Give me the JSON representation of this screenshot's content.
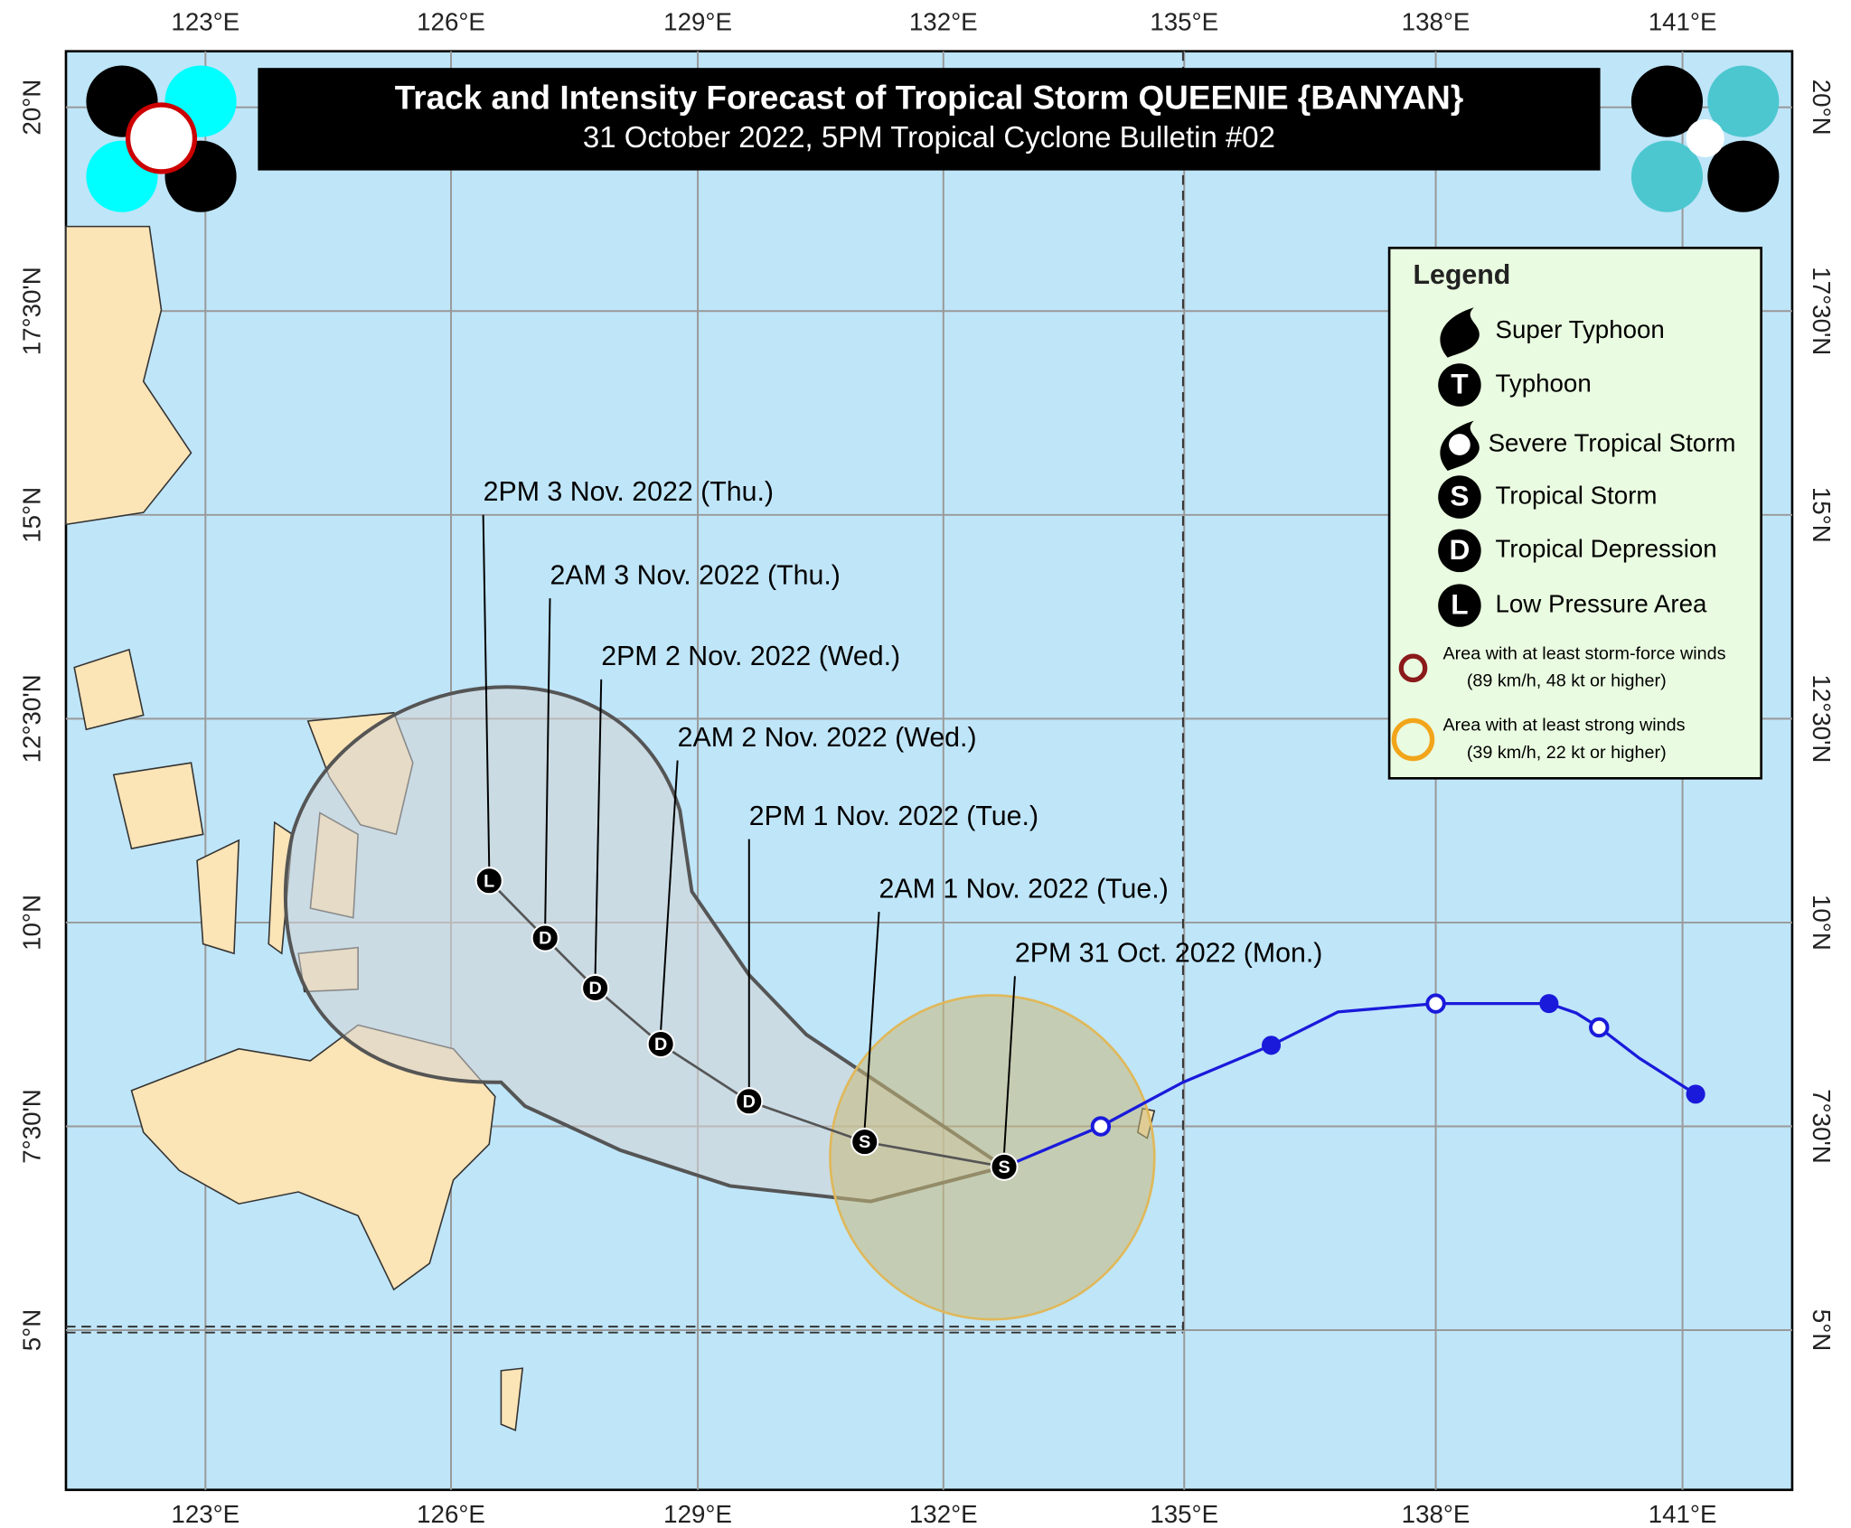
{
  "header": {
    "title": "Track and Intensity Forecast of Tropical Storm QUEENIE {BANYAN}",
    "subtitle": "31 October 2022, 5PM Tropical Cyclone Bulletin #02"
  },
  "axes": {
    "longitudes": [
      "123°E",
      "126°E",
      "129°E",
      "132°E",
      "135°E",
      "138°E",
      "141°E"
    ],
    "latitudes": [
      "20°N",
      "17°30'N",
      "15°N",
      "12°30'N",
      "10°N",
      "7°30'N",
      "5°N"
    ]
  },
  "forecast_points": [
    {
      "time": "2PM 3 Nov. 2022 (Thu.)",
      "symbol": "L"
    },
    {
      "time": "2AM 3 Nov. 2022 (Thu.)",
      "symbol": "D"
    },
    {
      "time": "2PM 2 Nov. 2022 (Wed.)",
      "symbol": "D"
    },
    {
      "time": "2AM 2 Nov. 2022 (Wed.)",
      "symbol": "D"
    },
    {
      "time": "2PM 1 Nov. 2022 (Tue.)",
      "symbol": "D"
    },
    {
      "time": "2AM 1 Nov. 2022 (Tue.)",
      "symbol": "S"
    },
    {
      "time": "2PM 31 Oct. 2022 (Mon.)",
      "symbol": "S"
    }
  ],
  "legend": {
    "title": "Legend",
    "items": [
      {
        "label": "Super Typhoon"
      },
      {
        "label": "Typhoon",
        "symbol": "T"
      },
      {
        "label": "Severe Tropical Storm"
      },
      {
        "label": "Tropical Storm",
        "symbol": "S"
      },
      {
        "label": "Tropical Depression",
        "symbol": "D"
      },
      {
        "label": "Low Pressure Area",
        "symbol": "L"
      }
    ],
    "areas": [
      {
        "lines": [
          "Area with at least storm-force winds",
          "(89 km/h, 48 kt or higher)"
        ]
      },
      {
        "lines": [
          "Area with at least strong winds",
          "(39 km/h, 22 kt or higher)"
        ]
      }
    ]
  }
}
